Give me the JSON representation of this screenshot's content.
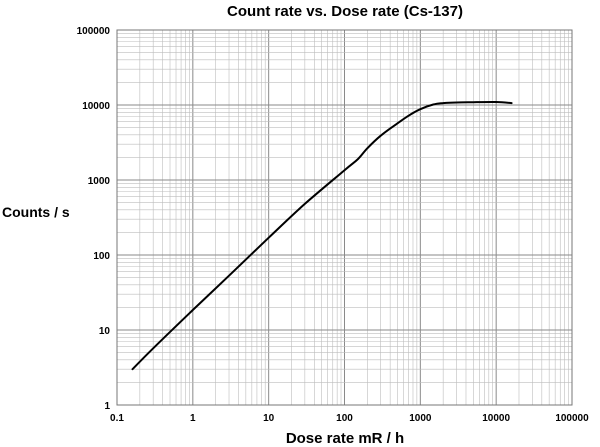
{
  "chart_data": {
    "type": "line",
    "title": "Count rate vs. Dose rate (Cs-137)",
    "xlabel": "Dose rate mR / h",
    "ylabel": "Counts / s",
    "x_scale": "log",
    "y_scale": "log",
    "xlim": [
      0.1,
      100000
    ],
    "ylim": [
      1,
      100000
    ],
    "grid": true,
    "x_ticks": [
      "0.1",
      "1",
      "10",
      "100",
      "1000",
      "10000",
      "100000"
    ],
    "y_ticks": [
      "1",
      "10",
      "100",
      "1000",
      "10000",
      "100000"
    ],
    "series": [
      {
        "x": [
          0.16,
          0.3,
          1,
          3,
          10,
          30,
          100,
          150,
          200,
          300,
          500,
          700,
          1000,
          1500,
          2000,
          3000,
          5000,
          10000,
          16000
        ],
        "y": [
          3,
          5.7,
          18.5,
          53,
          170,
          480,
          1350,
          1900,
          2650,
          3900,
          5700,
          7200,
          8800,
          10200,
          10600,
          10800,
          10900,
          10950,
          10600
        ]
      }
    ]
  }
}
